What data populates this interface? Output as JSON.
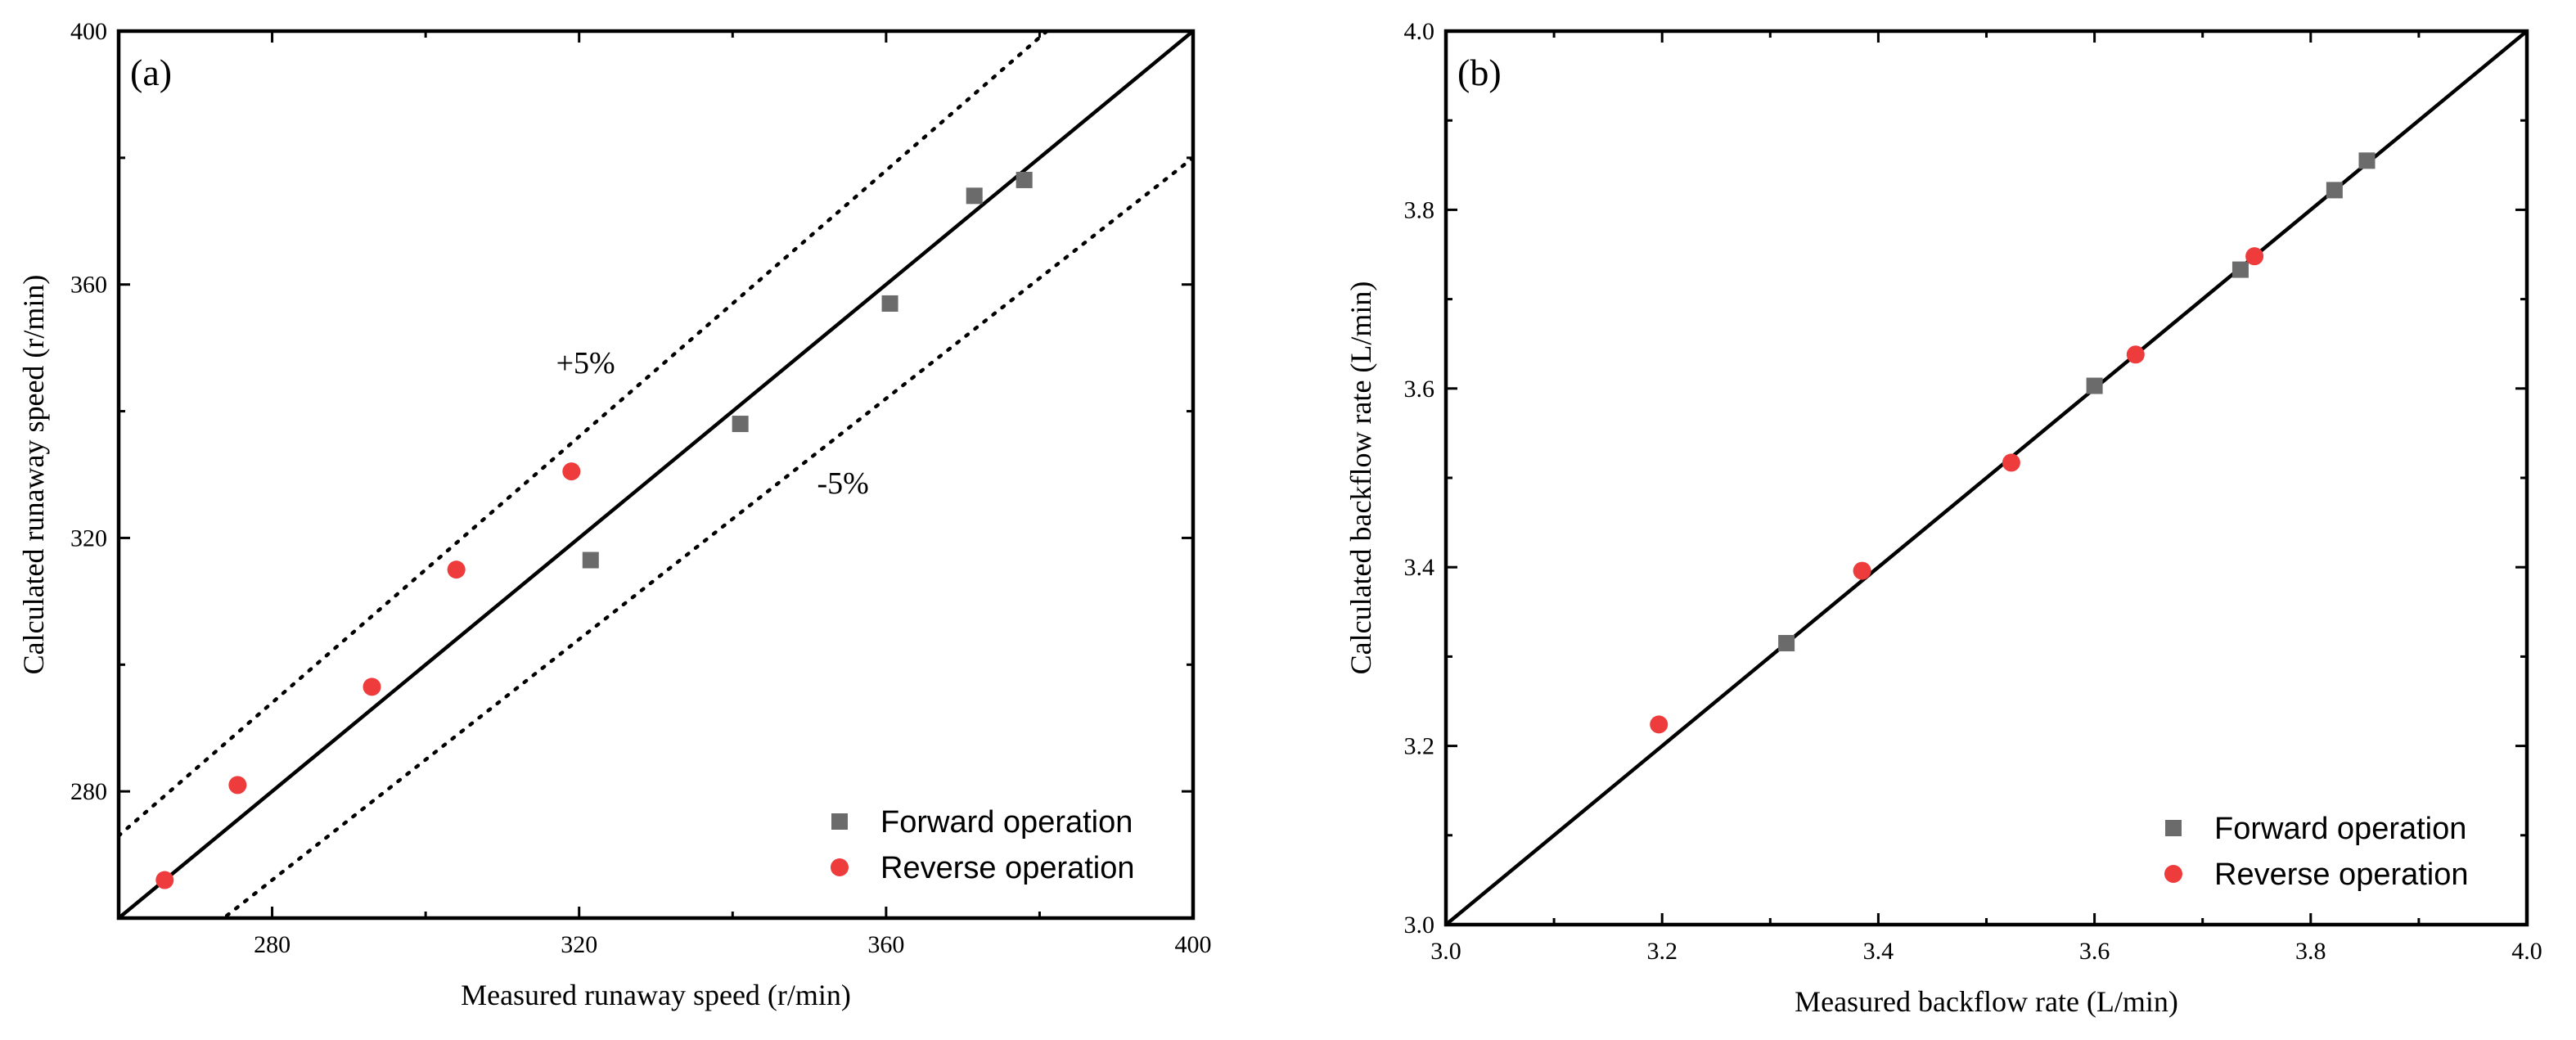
{
  "colors": {
    "forward": "#6b6b6b",
    "reverse": "#ee3b3b",
    "line": "#000000"
  },
  "chart_data": [
    {
      "type": "scatter",
      "panel_label": "(a)",
      "xlabel": "Measured runaway speed (r/min)",
      "ylabel": "Calculated runaway speed (r/min)",
      "xlim": [
        260,
        400
      ],
      "ylim": [
        260,
        400
      ],
      "xticks": [
        280,
        320,
        360,
        400
      ],
      "yticks": [
        280,
        320,
        360,
        400
      ],
      "xtick_labels": [
        "280",
        "320",
        "360",
        "400"
      ],
      "ytick_labels": [
        "280",
        "320",
        "360",
        "400"
      ],
      "reference_lines": [
        {
          "name": "y = x",
          "slope": 1.0,
          "style": "solid"
        },
        {
          "name": "+5%",
          "slope": 1.05,
          "style": "dotted",
          "label": "+5%",
          "label_at": [
            317,
            346
          ]
        },
        {
          "name": "-5%",
          "slope": 0.95,
          "style": "dotted",
          "label": "-5%",
          "label_at": [
            351,
            327
          ]
        }
      ],
      "series": [
        {
          "name": "Forward operation",
          "marker": "square",
          "x": [
            321.5,
            341,
            360.5,
            371.5,
            378
          ],
          "y": [
            316.5,
            338,
            357,
            374,
            376.5
          ]
        },
        {
          "name": "Reverse operation",
          "marker": "circle",
          "x": [
            266,
            275.5,
            293,
            304,
            319
          ],
          "y": [
            266,
            281,
            296.5,
            315,
            330.5
          ]
        }
      ],
      "legend": {
        "entries": [
          "Forward operation",
          "Reverse operation"
        ],
        "position": "bottom-right"
      }
    },
    {
      "type": "scatter",
      "panel_label": "(b)",
      "xlabel": "Measured backflow rate (L/min)",
      "ylabel": "Calculated backflow rate (L/min)",
      "xlim": [
        3.0,
        4.0
      ],
      "ylim": [
        3.0,
        4.0
      ],
      "xticks": [
        3.0,
        3.2,
        3.4,
        3.6,
        3.8,
        4.0
      ],
      "yticks": [
        3.0,
        3.2,
        3.4,
        3.6,
        3.8,
        4.0
      ],
      "xtick_labels": [
        "3.0",
        "3.2",
        "3.4",
        "3.6",
        "3.8",
        "4.0"
      ],
      "ytick_labels": [
        "3.0",
        "3.2",
        "3.4",
        "3.6",
        "3.8",
        "4.0"
      ],
      "reference_lines": [
        {
          "name": "y = x",
          "slope": 1.0,
          "style": "solid"
        }
      ],
      "series": [
        {
          "name": "Forward operation",
          "marker": "square",
          "x": [
            3.315,
            3.6,
            3.735,
            3.822,
            3.852
          ],
          "y": [
            3.315,
            3.603,
            3.733,
            3.822,
            3.855
          ]
        },
        {
          "name": "Reverse operation",
          "marker": "circle",
          "x": [
            3.197,
            3.385,
            3.523,
            3.638,
            3.748
          ],
          "y": [
            3.224,
            3.396,
            3.517,
            3.638,
            3.748
          ]
        }
      ],
      "legend": {
        "entries": [
          "Forward operation",
          "Reverse operation"
        ],
        "position": "bottom-right"
      }
    }
  ]
}
